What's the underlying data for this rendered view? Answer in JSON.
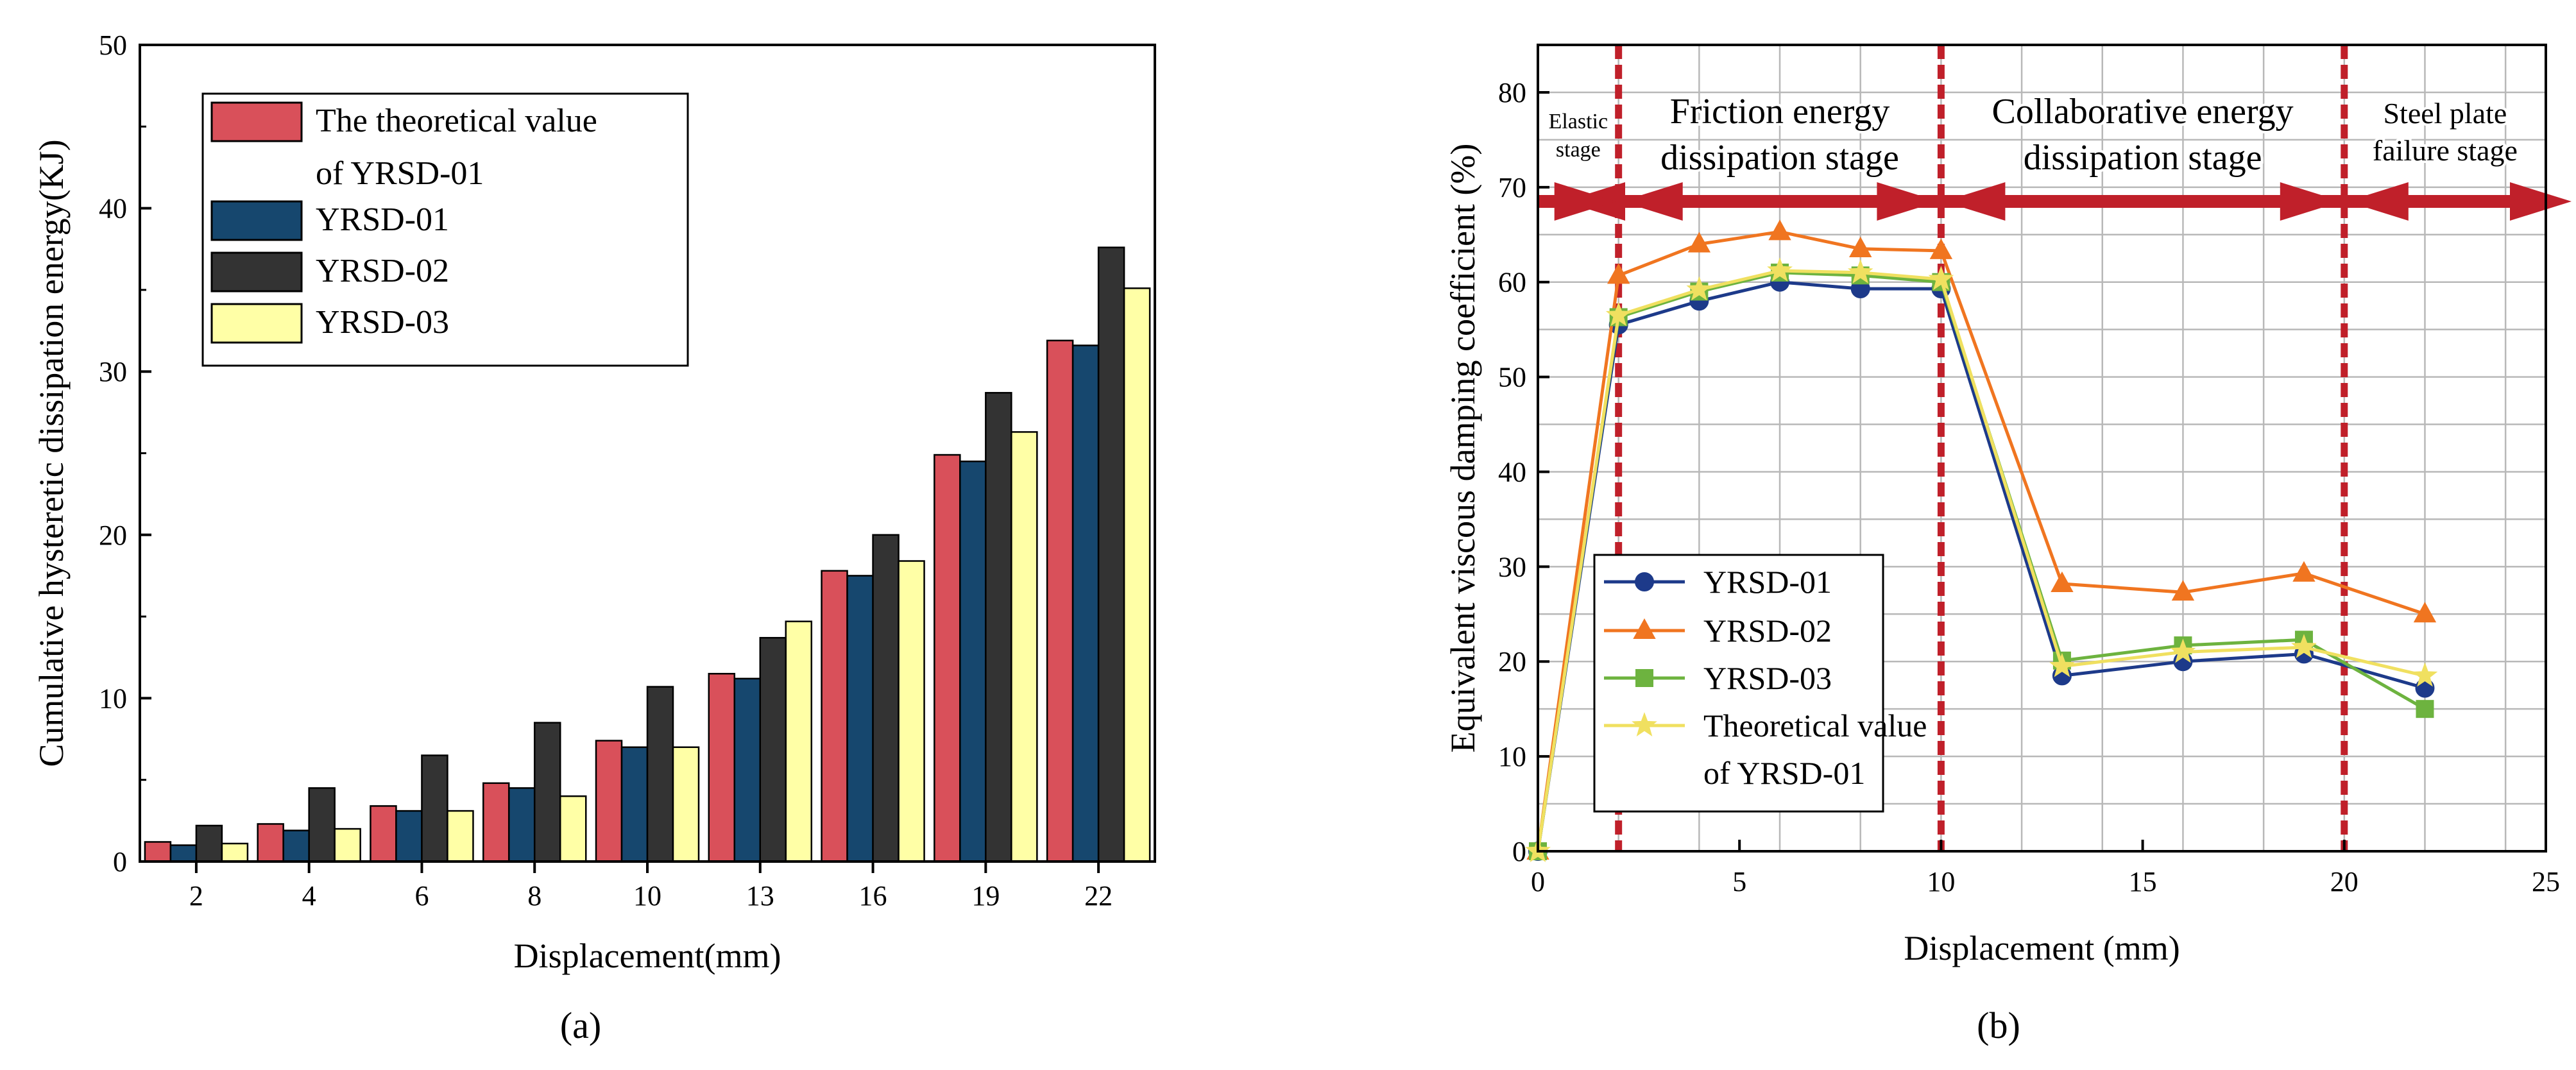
{
  "colors": {
    "theoretical_bar": "#d9505a",
    "yrsd01_bar": "#16476e",
    "yrsd02_bar": "#333333",
    "yrsd03_bar": "#ffffa6",
    "yrsd01_line": "#1d3a8a",
    "yrsd02_line": "#f07520",
    "yrsd03_line": "#6db33f",
    "theoretical_line": "#f0e060",
    "stage_line": "#c0202a",
    "stage_arrow": "#c0202a",
    "grid": "#b8b8b8"
  },
  "chart_data": [
    {
      "type": "bar",
      "panel_label": "a",
      "title": "",
      "xlabel": "Displacement(mm)",
      "ylabel": "Cumulative hysteretic dissipation energy(KJ)",
      "ylim": [
        0,
        50
      ],
      "yticks": [
        "0",
        "10",
        "20",
        "30",
        "40",
        "50"
      ],
      "categories": [
        "2",
        "4",
        "6",
        "8",
        "10",
        "13",
        "16",
        "19",
        "22"
      ],
      "legend_position": "top-left",
      "series": [
        {
          "name": "The theoretical value of YRSD-01",
          "legend_lines": [
            "The theoretical value",
            "of YRSD-01"
          ],
          "color_key": "theoretical_bar",
          "values": [
            1.2,
            2.3,
            3.4,
            4.8,
            7.4,
            11.5,
            17.8,
            24.9,
            31.9
          ]
        },
        {
          "name": "YRSD-01",
          "legend_lines": [
            "YRSD-01"
          ],
          "color_key": "yrsd01_bar",
          "values": [
            1.0,
            1.9,
            3.1,
            4.5,
            7.0,
            11.2,
            17.5,
            24.5,
            31.6
          ]
        },
        {
          "name": "YRSD-02",
          "legend_lines": [
            "YRSD-02"
          ],
          "color_key": "yrsd02_bar",
          "values": [
            2.2,
            4.5,
            6.5,
            8.5,
            10.7,
            13.7,
            20.0,
            28.7,
            37.6
          ]
        },
        {
          "name": "YRSD-03",
          "legend_lines": [
            "YRSD-03"
          ],
          "color_key": "yrsd03_bar",
          "values": [
            1.1,
            2.0,
            3.1,
            4.0,
            7.0,
            14.7,
            18.4,
            26.3,
            35.1
          ]
        }
      ]
    },
    {
      "type": "line",
      "panel_label": "b",
      "title": "",
      "xlabel": "Displacement (mm)",
      "ylabel": "Equivalent viscous damping coefficient (%)",
      "xlim": [
        0,
        25
      ],
      "ylim": [
        0,
        85
      ],
      "xticks": [
        "0",
        "5",
        "10",
        "15",
        "20",
        "25"
      ],
      "yticks": [
        "0",
        "10",
        "20",
        "30",
        "40",
        "50",
        "60",
        "70",
        "80"
      ],
      "grid": true,
      "legend_position": "bottom-left",
      "x": [
        0,
        2,
        4,
        6,
        8,
        10,
        13,
        16,
        19,
        22
      ],
      "series": [
        {
          "name": "YRSD-01",
          "legend_lines": [
            "YRSD-01"
          ],
          "marker": "circle",
          "color_key": "yrsd01_line",
          "values": [
            0,
            55.5,
            58,
            60,
            59.3,
            59.3,
            18.5,
            20,
            20.8,
            17.2
          ]
        },
        {
          "name": "YRSD-02",
          "legend_lines": [
            "YRSD-02"
          ],
          "marker": "triangle",
          "color_key": "yrsd02_line",
          "values": [
            0,
            60.7,
            64,
            65.3,
            63.5,
            63.3,
            28.2,
            27.3,
            29.3,
            25
          ]
        },
        {
          "name": "YRSD-03",
          "legend_lines": [
            "YRSD-03"
          ],
          "marker": "square",
          "color_key": "yrsd03_line",
          "values": [
            0,
            56.3,
            59,
            61,
            60.7,
            60,
            20.1,
            21.7,
            22.3,
            15
          ]
        },
        {
          "name": "Theoretical value of YRSD-01",
          "legend_lines": [
            "Theoretical value",
            "of YRSD-01"
          ],
          "marker": "star",
          "color_key": "theoretical_line",
          "values": [
            0,
            56.5,
            59.2,
            61.2,
            61,
            60.3,
            19.5,
            21,
            21.5,
            18.5
          ]
        }
      ],
      "stage_boundaries": [
        2,
        10,
        20
      ],
      "stages": [
        {
          "x_range": [
            0,
            2
          ],
          "lines": [
            "Elastic",
            "stage"
          ],
          "size": "small"
        },
        {
          "x_range": [
            2,
            10
          ],
          "lines": [
            "Friction energy",
            "dissipation stage"
          ],
          "size": "large"
        },
        {
          "x_range": [
            10,
            20
          ],
          "lines": [
            "Collaborative energy",
            "dissipation stage"
          ],
          "size": "large"
        },
        {
          "x_range": [
            20,
            25
          ],
          "lines": [
            "Steel plate",
            "failure stage"
          ],
          "size": "medium"
        }
      ],
      "stage_arrow_y": 68.5
    }
  ],
  "captions": [
    "(a)",
    "(b)"
  ]
}
